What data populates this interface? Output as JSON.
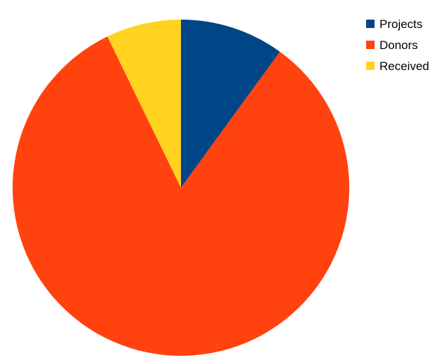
{
  "chart_data": {
    "type": "pie",
    "title": "",
    "start_angle_deg": 0,
    "direction": "clockwise",
    "legend_position": "top-right",
    "categories": [
      "Projects",
      "Donors",
      "Received"
    ],
    "values": [
      10.0,
      82.8,
      7.2
    ],
    "colors": [
      "#004586",
      "#ff420e",
      "#ffd320"
    ]
  }
}
